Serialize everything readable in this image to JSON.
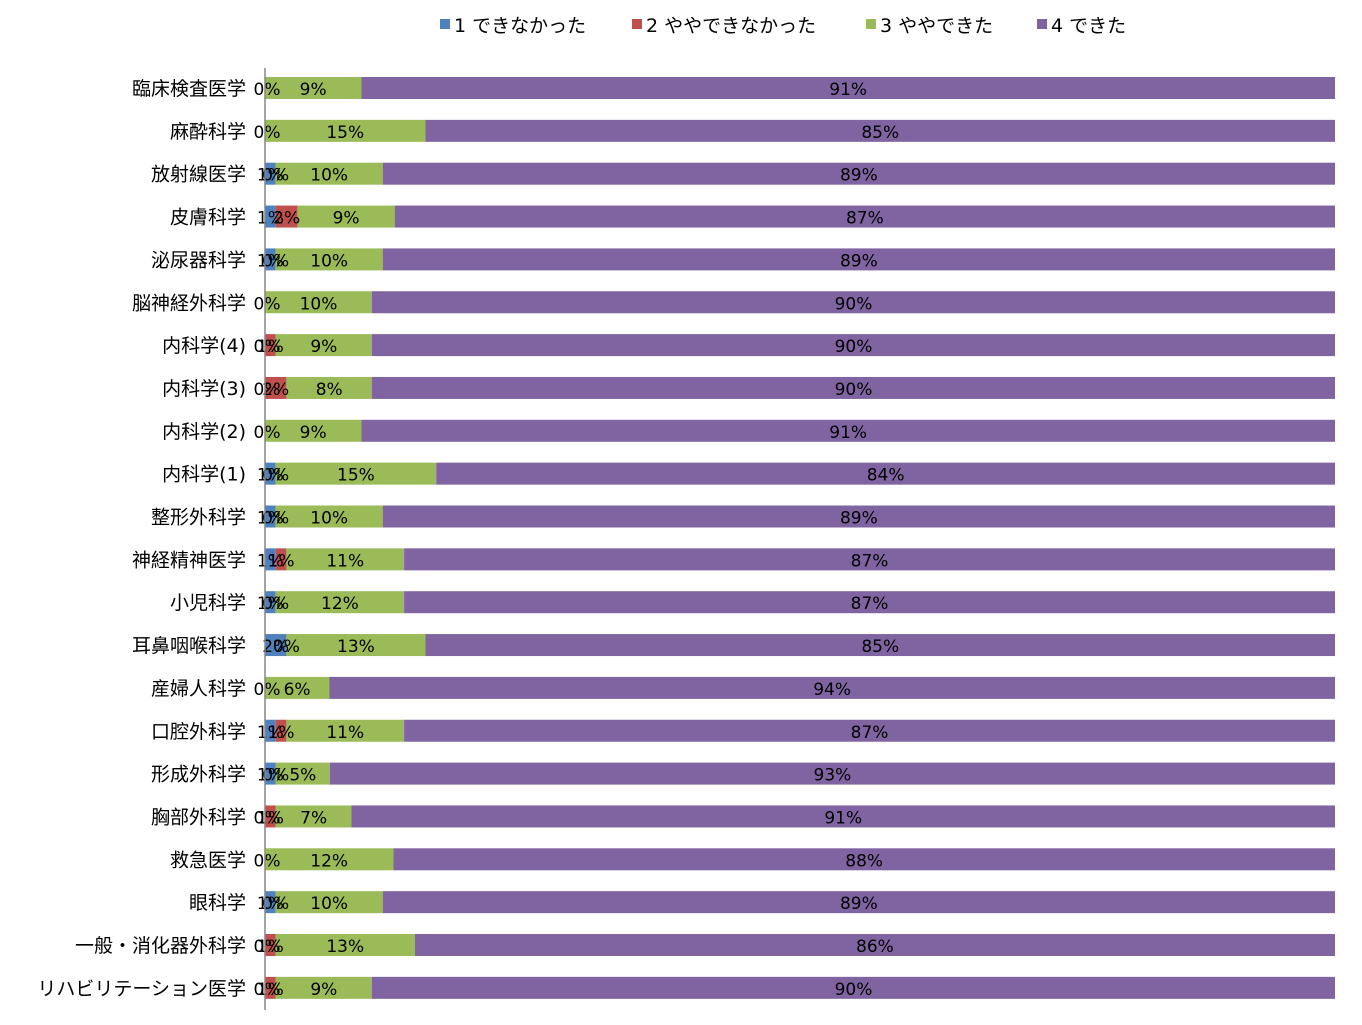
{
  "chart_data": {
    "type": "bar",
    "orientation": "horizontal",
    "stacked": "percent",
    "legend_position": "top",
    "grid": false,
    "xlim": [
      0,
      100
    ],
    "categories": [
      "臨床検査医学",
      "麻酔科学",
      "放射線医学",
      "皮膚科学",
      "泌尿器科学",
      "脳神経外科学",
      "内科学(4)",
      "内科学(3)",
      "内科学(2)",
      "内科学(1)",
      "整形外科学",
      "神経精神医学",
      "小児科学",
      "耳鼻咽喉科学",
      "産婦人科学",
      "口腔外科学",
      "形成外科学",
      "胸部外科学",
      "救急医学",
      "眼科学",
      "一般・消化器外科学",
      "リハビリテーション医学"
    ],
    "series": [
      {
        "name": "1 できなかった",
        "color": "#4F81BD",
        "values": [
          0,
          0,
          1,
          1,
          1,
          0,
          0,
          0,
          0,
          1,
          1,
          1,
          1,
          2,
          0,
          1,
          1,
          0,
          0,
          1,
          0,
          0
        ],
        "labels": [
          "0%",
          "0%",
          "1%",
          "1%",
          "1%",
          "0%",
          "0%",
          "0%",
          "0%",
          "1%",
          "1%",
          "1%",
          "1%",
          "2%",
          "0%",
          "1%",
          "1%",
          "0%",
          "0%",
          "1%",
          "0%",
          "0%"
        ]
      },
      {
        "name": "2 ややできなかった",
        "color": "#C0504D",
        "values": [
          0,
          0,
          0,
          2,
          0,
          0,
          1,
          2,
          0,
          0,
          0,
          1,
          0,
          0,
          0,
          1,
          0,
          1,
          0,
          0,
          1,
          1
        ],
        "labels": [
          "",
          "",
          "0%",
          "2%",
          "0%",
          "",
          "1%",
          "2%",
          "",
          "0%",
          "0%",
          "1%",
          "0%",
          "0%",
          "",
          "1%",
          "0%",
          "1%",
          "",
          "0%",
          "1%",
          "1%"
        ]
      },
      {
        "name": "3 ややできた",
        "color": "#9BBB59",
        "values": [
          9,
          15,
          10,
          9,
          10,
          10,
          9,
          8,
          9,
          15,
          10,
          11,
          12,
          13,
          6,
          11,
          5,
          7,
          12,
          10,
          13,
          9
        ],
        "labels": [
          "9%",
          "15%",
          "10%",
          "9%",
          "10%",
          "10%",
          "9%",
          "8%",
          "9%",
          "15%",
          "10%",
          "11%",
          "12%",
          "13%",
          "6%",
          "11%",
          "5%",
          "7%",
          "12%",
          "10%",
          "13%",
          "9%"
        ]
      },
      {
        "name": "4 できた",
        "color": "#8064A2",
        "values": [
          91,
          85,
          89,
          87,
          89,
          90,
          90,
          90,
          91,
          84,
          89,
          87,
          87,
          85,
          94,
          87,
          93,
          91,
          88,
          89,
          86,
          90
        ],
        "labels": [
          "91%",
          "85%",
          "89%",
          "87%",
          "89%",
          "90%",
          "90%",
          "90%",
          "91%",
          "84%",
          "89%",
          "87%",
          "87%",
          "85%",
          "94%",
          "87%",
          "93%",
          "91%",
          "88%",
          "89%",
          "86%",
          "90%"
        ]
      }
    ]
  }
}
